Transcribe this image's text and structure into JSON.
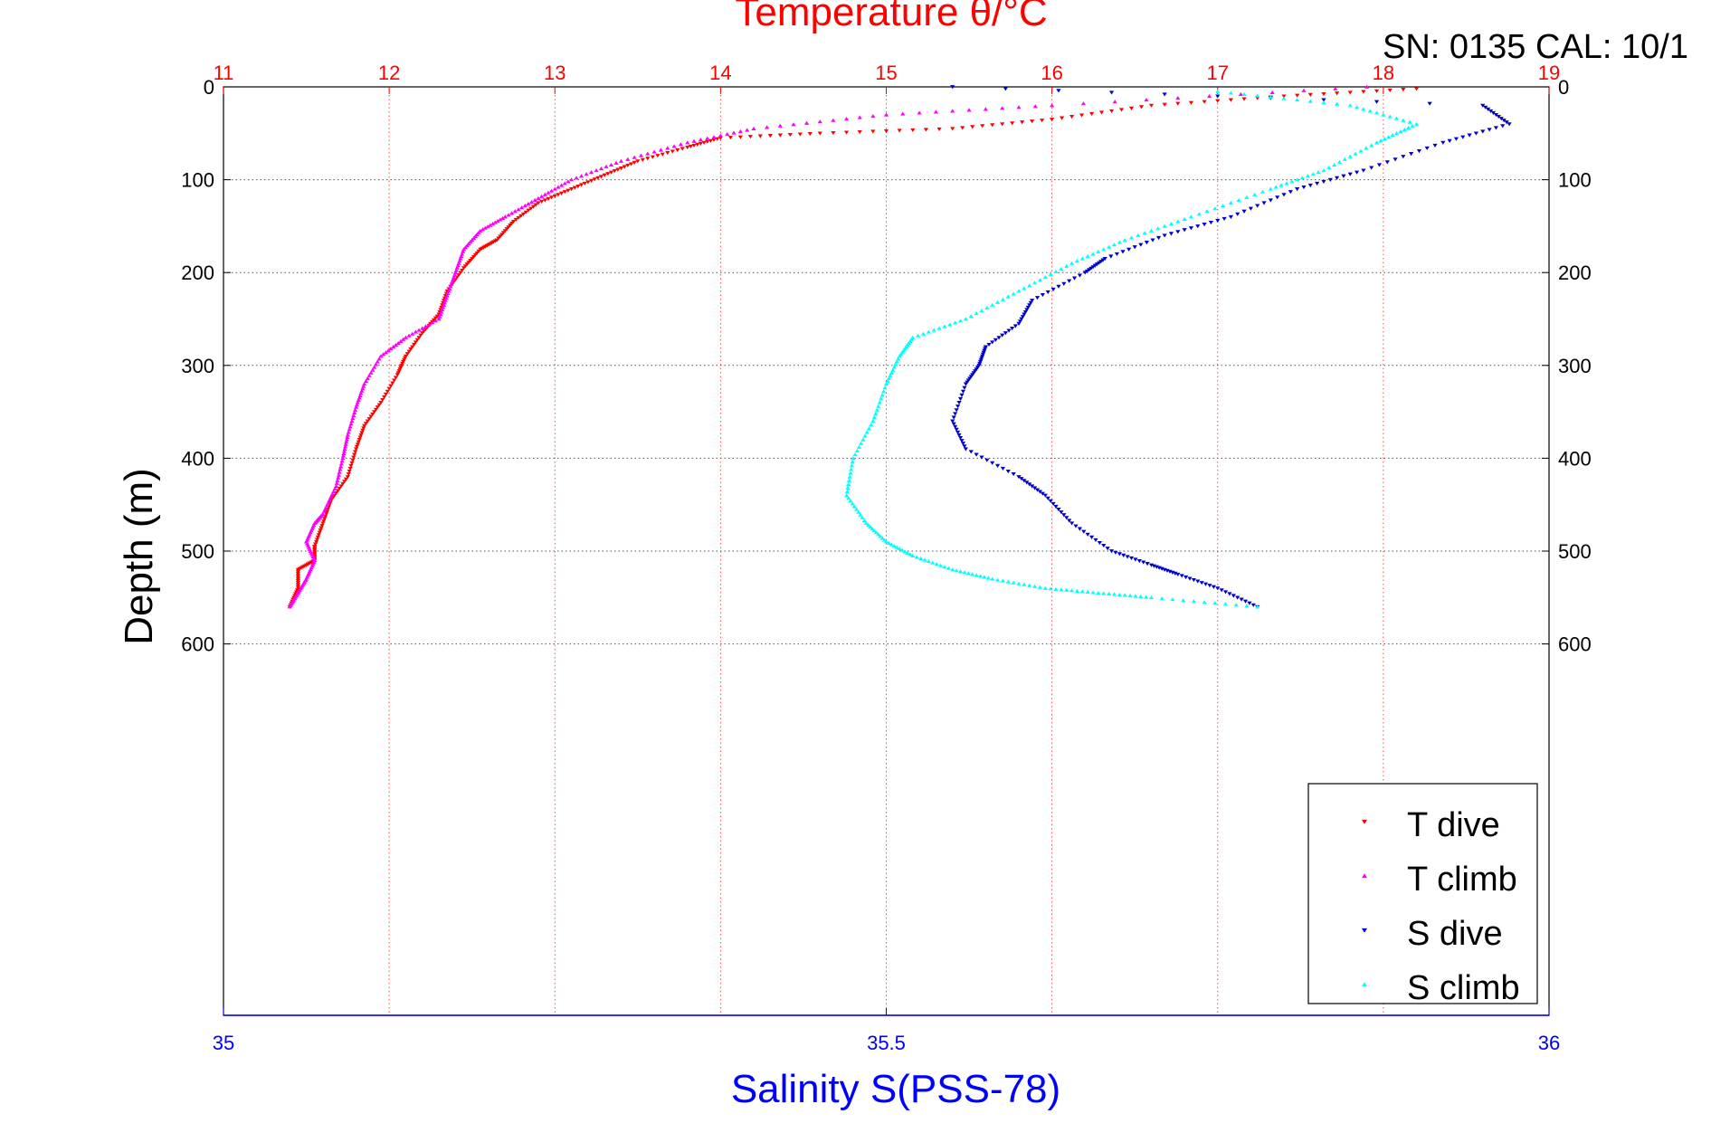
{
  "chart_data": {
    "type": "scatter",
    "top_axis": {
      "label": "Temperature θ/°C",
      "min": 11,
      "max": 19,
      "ticks": [
        "11",
        "12",
        "13",
        "14",
        "15",
        "16",
        "17",
        "18",
        "19"
      ],
      "color": "#ff0000",
      "grid": true
    },
    "bottom_axis": {
      "label": "Salinity S(PSS-78)",
      "min": 35,
      "max": 36,
      "ticks": [
        "35",
        "35.5",
        "36"
      ],
      "color": "#0000ff"
    },
    "y_axis": {
      "label": "Depth (m)",
      "min": 0,
      "max": 1000,
      "reversed": true,
      "ticks": [
        "0",
        "100",
        "200",
        "300",
        "400",
        "500",
        "600"
      ],
      "grid": true
    },
    "annotation": "SN: 0135  CAL: 10/1",
    "legend": {
      "placement": "bottom-right",
      "entries": [
        {
          "label": "T dive",
          "color": "#ff0000",
          "marker": "triangle-down"
        },
        {
          "label": "T climb",
          "color": "#ff00ff",
          "marker": "triangle-up"
        },
        {
          "label": "S dive",
          "color": "#0000cc",
          "marker": "triangle-down"
        },
        {
          "label": "S climb",
          "color": "#00ffff",
          "marker": "triangle-up"
        }
      ]
    },
    "series": [
      {
        "name": "T dive",
        "axis": "top",
        "color": "#ff0000",
        "marker": "triangle-down",
        "x": [
          18.2,
          17.4,
          16.6,
          16.0,
          15.4,
          14.6,
          14.0,
          13.8,
          13.5,
          13.3,
          13.1,
          12.9,
          12.75,
          12.65,
          12.55,
          12.45,
          12.35,
          12.3,
          12.2,
          12.1,
          12.05,
          11.95,
          11.85,
          11.8,
          11.75,
          11.65,
          11.6,
          11.55,
          11.55,
          11.45,
          11.45,
          11.4
        ],
        "y": [
          2,
          10,
          20,
          35,
          45,
          50,
          55,
          65,
          80,
          95,
          110,
          125,
          145,
          165,
          175,
          195,
          220,
          245,
          265,
          290,
          310,
          340,
          365,
          390,
          420,
          445,
          470,
          495,
          510,
          520,
          540,
          560
        ]
      },
      {
        "name": "T climb",
        "axis": "top",
        "color": "#ff00ff",
        "marker": "triangle-up",
        "x": [
          17.9,
          16.0,
          15.0,
          14.2,
          13.8,
          13.4,
          13.1,
          12.9,
          12.7,
          12.55,
          12.45,
          12.4,
          12.35,
          12.3,
          12.1,
          11.95,
          11.85,
          11.8,
          11.75,
          11.72,
          11.68,
          11.6,
          11.55,
          11.5,
          11.55,
          11.5,
          11.45,
          11.4
        ],
        "y": [
          0,
          20,
          30,
          45,
          60,
          80,
          100,
          120,
          140,
          155,
          175,
          200,
          225,
          250,
          270,
          290,
          320,
          345,
          375,
          400,
          430,
          460,
          470,
          490,
          510,
          530,
          545,
          560
        ]
      },
      {
        "name": "S dive",
        "axis": "bottom",
        "color": "#0000cc",
        "marker": "triangle-down",
        "x": [
          35.55,
          35.95,
          35.97,
          35.92,
          35.86,
          35.81,
          35.76,
          35.71,
          35.665,
          35.65,
          35.61,
          35.6,
          35.575,
          35.57,
          35.56,
          35.55,
          35.56,
          35.6,
          35.62,
          35.64,
          35.67,
          35.7,
          35.72,
          35.75,
          35.78
        ],
        "y": [
          0,
          20,
          40,
          60,
          90,
          110,
          140,
          160,
          185,
          200,
          230,
          255,
          280,
          300,
          320,
          360,
          390,
          420,
          440,
          470,
          500,
          515,
          525,
          540,
          560
        ]
      },
      {
        "name": "S climb",
        "axis": "bottom",
        "color": "#00ffff",
        "marker": "triangle-up",
        "x": [
          35.75,
          35.85,
          35.9,
          35.87,
          35.83,
          35.79,
          35.73,
          35.68,
          35.64,
          35.6,
          35.56,
          35.52,
          35.51,
          35.5,
          35.49,
          35.475,
          35.47,
          35.485,
          35.5,
          35.52,
          35.55,
          35.58,
          35.62,
          35.66,
          35.7,
          35.78
        ],
        "y": [
          5,
          20,
          40,
          60,
          90,
          110,
          140,
          165,
          190,
          220,
          250,
          270,
          290,
          320,
          360,
          400,
          440,
          470,
          490,
          505,
          520,
          530,
          540,
          545,
          550,
          560
        ]
      }
    ]
  }
}
